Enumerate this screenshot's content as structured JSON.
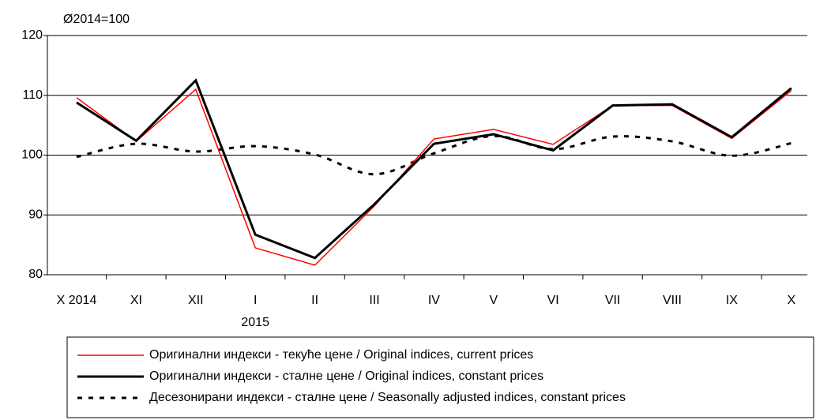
{
  "chart_data": {
    "type": "line",
    "unit_label": "Ø2014=100",
    "categories": [
      "X 2014",
      "XI",
      "XII",
      "I",
      "II",
      "III",
      "IV",
      "V",
      "VI",
      "VII",
      "VIII",
      "IX",
      "X"
    ],
    "year_labels": [
      null,
      null,
      null,
      "2015",
      null,
      null,
      null,
      null,
      null,
      null,
      null,
      null,
      null
    ],
    "series": [
      {
        "name": "Оригинални индекси - текуће цене / Original indices, current prices",
        "color": "#ff0000",
        "width": 1.5,
        "dash": "solid",
        "values": [
          109.6,
          102.3,
          111.0,
          84.5,
          81.6,
          91.5,
          102.7,
          104.3,
          101.8,
          108.3,
          108.3,
          102.8,
          110.8
        ]
      },
      {
        "name": "Оригинални индекси - сталне цене / Original indices, constant prices",
        "color": "#000000",
        "width": 3,
        "dash": "solid",
        "values": [
          108.8,
          102.4,
          112.5,
          86.7,
          82.8,
          91.8,
          101.9,
          103.5,
          100.8,
          108.3,
          108.5,
          103.0,
          111.2
        ]
      },
      {
        "name": "Десезонирани индекси - сталне цене / Seasonally adjusted indices, constant prices",
        "color": "#000000",
        "width": 3,
        "dash": "dashed",
        "smooth": true,
        "values": [
          99.7,
          101.9,
          100.6,
          101.5,
          100.1,
          96.8,
          100.3,
          103.2,
          101.0,
          103.1,
          102.3,
          99.9,
          102.0
        ]
      }
    ],
    "ylim": [
      80,
      120
    ],
    "yticks": [
      80,
      90,
      100,
      110,
      120
    ],
    "grid": true
  }
}
